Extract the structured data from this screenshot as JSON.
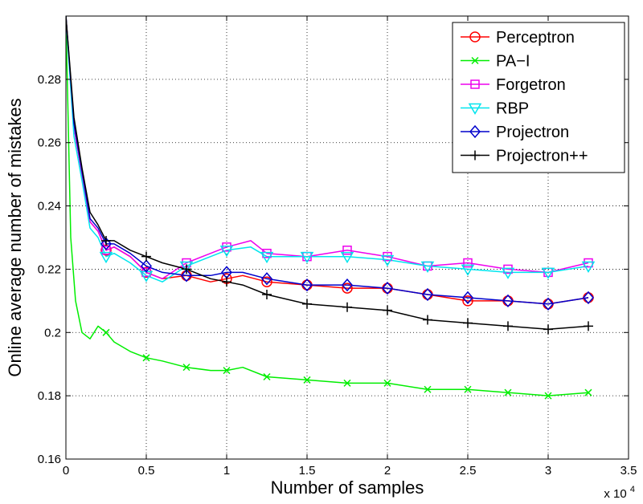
{
  "chart_data": {
    "type": "line",
    "xlabel": "Number of samples",
    "ylabel": "Online average number of mistakes",
    "x_multiplier_label": "x 10",
    "x_multiplier_exponent": "4",
    "xlim": [
      0,
      3.5
    ],
    "ylim": [
      0.16,
      0.3
    ],
    "xticks": [
      0,
      0.5,
      1,
      1.5,
      2,
      2.5,
      3,
      3.5
    ],
    "yticks": [
      0.16,
      0.18,
      0.2,
      0.22,
      0.24,
      0.26,
      0.28
    ],
    "xtick_labels": [
      "0",
      "0.5",
      "1",
      "1.5",
      "2",
      "2.5",
      "3",
      "3.5"
    ],
    "ytick_labels": [
      "0.16",
      "0.18",
      "0.2",
      "0.22",
      "0.24",
      "0.26",
      "0.28"
    ],
    "grid": true,
    "legend_position": "top-right",
    "series": [
      {
        "name": "Perceptron",
        "color": "#ff0000",
        "marker": "circle",
        "x": [
          0.0,
          0.05,
          0.1,
          0.15,
          0.2,
          0.25,
          0.3,
          0.4,
          0.5,
          0.6,
          0.75,
          0.9,
          1.0,
          1.1,
          1.25,
          1.5,
          1.75,
          2.0,
          2.25,
          2.5,
          2.75,
          3.0,
          3.25
        ],
        "y": [
          0.3,
          0.265,
          0.25,
          0.235,
          0.232,
          0.226,
          0.227,
          0.224,
          0.219,
          0.217,
          0.218,
          0.216,
          0.217,
          0.218,
          0.216,
          0.215,
          0.214,
          0.214,
          0.212,
          0.21,
          0.21,
          0.209,
          0.211
        ],
        "marker_x": [
          0.25,
          0.5,
          0.75,
          1.0,
          1.25,
          1.5,
          1.75,
          2.0,
          2.25,
          2.5,
          2.75,
          3.0,
          3.25
        ]
      },
      {
        "name": "PA−I",
        "color": "#00ee00",
        "marker": "x",
        "x": [
          0.0,
          0.03,
          0.06,
          0.1,
          0.15,
          0.2,
          0.25,
          0.3,
          0.4,
          0.5,
          0.6,
          0.75,
          0.9,
          1.0,
          1.1,
          1.25,
          1.5,
          1.75,
          2.0,
          2.25,
          2.5,
          2.75,
          3.0,
          3.25
        ],
        "y": [
          0.3,
          0.23,
          0.21,
          0.2,
          0.198,
          0.202,
          0.2,
          0.197,
          0.194,
          0.192,
          0.191,
          0.189,
          0.188,
          0.188,
          0.189,
          0.186,
          0.185,
          0.184,
          0.184,
          0.182,
          0.182,
          0.181,
          0.18,
          0.181
        ],
        "marker_x": [
          0.25,
          0.5,
          0.75,
          1.0,
          1.25,
          1.5,
          1.75,
          2.0,
          2.25,
          2.5,
          2.75,
          3.0,
          3.25
        ]
      },
      {
        "name": "Forgetron",
        "color": "#ee00ee",
        "marker": "square",
        "x": [
          0.0,
          0.05,
          0.1,
          0.15,
          0.2,
          0.25,
          0.3,
          0.4,
          0.5,
          0.6,
          0.75,
          0.9,
          1.0,
          1.15,
          1.25,
          1.5,
          1.75,
          2.0,
          2.25,
          2.5,
          2.75,
          3.0,
          3.25
        ],
        "y": [
          0.3,
          0.265,
          0.25,
          0.235,
          0.232,
          0.226,
          0.227,
          0.224,
          0.219,
          0.217,
          0.222,
          0.225,
          0.227,
          0.229,
          0.225,
          0.224,
          0.226,
          0.224,
          0.221,
          0.222,
          0.22,
          0.219,
          0.222
        ],
        "marker_x": [
          0.25,
          0.5,
          0.75,
          1.0,
          1.25,
          1.5,
          1.75,
          2.0,
          2.25,
          2.5,
          2.75,
          3.0,
          3.25
        ]
      },
      {
        "name": "RBP",
        "color": "#00e5ee",
        "marker": "triangle-down",
        "x": [
          0.0,
          0.05,
          0.1,
          0.15,
          0.2,
          0.25,
          0.3,
          0.4,
          0.5,
          0.6,
          0.75,
          0.9,
          1.0,
          1.15,
          1.25,
          1.5,
          1.75,
          2.0,
          2.25,
          2.5,
          2.75,
          3.0,
          3.25
        ],
        "y": [
          0.3,
          0.262,
          0.248,
          0.233,
          0.23,
          0.224,
          0.225,
          0.222,
          0.218,
          0.216,
          0.221,
          0.224,
          0.226,
          0.227,
          0.224,
          0.224,
          0.224,
          0.223,
          0.221,
          0.22,
          0.219,
          0.219,
          0.221
        ],
        "marker_x": [
          0.25,
          0.5,
          0.75,
          1.0,
          1.25,
          1.5,
          1.75,
          2.0,
          2.25,
          2.5,
          2.75,
          3.0,
          3.25
        ]
      },
      {
        "name": "Projectron",
        "color": "#0000cc",
        "marker": "diamond",
        "x": [
          0.0,
          0.05,
          0.1,
          0.15,
          0.2,
          0.25,
          0.3,
          0.4,
          0.5,
          0.6,
          0.75,
          0.9,
          1.0,
          1.1,
          1.25,
          1.5,
          1.75,
          2.0,
          2.25,
          2.5,
          2.75,
          3.0,
          3.25
        ],
        "y": [
          0.3,
          0.266,
          0.251,
          0.236,
          0.233,
          0.228,
          0.228,
          0.225,
          0.221,
          0.219,
          0.218,
          0.218,
          0.219,
          0.219,
          0.217,
          0.215,
          0.215,
          0.214,
          0.212,
          0.211,
          0.21,
          0.209,
          0.211
        ],
        "marker_x": [
          0.25,
          0.5,
          0.75,
          1.0,
          1.25,
          1.5,
          1.75,
          2.0,
          2.25,
          2.5,
          2.75,
          3.0,
          3.25
        ]
      },
      {
        "name": "Projectron++",
        "color": "#000000",
        "marker": "plus",
        "x": [
          0.0,
          0.05,
          0.1,
          0.15,
          0.2,
          0.25,
          0.3,
          0.4,
          0.5,
          0.6,
          0.75,
          0.9,
          1.0,
          1.1,
          1.25,
          1.5,
          1.75,
          2.0,
          2.25,
          2.5,
          2.75,
          3.0,
          3.25
        ],
        "y": [
          0.3,
          0.268,
          0.252,
          0.238,
          0.234,
          0.229,
          0.229,
          0.226,
          0.224,
          0.222,
          0.22,
          0.217,
          0.216,
          0.215,
          0.212,
          0.209,
          0.208,
          0.207,
          0.204,
          0.203,
          0.202,
          0.201,
          0.202
        ],
        "marker_x": [
          0.25,
          0.5,
          0.75,
          1.0,
          1.25,
          1.5,
          1.75,
          2.0,
          2.25,
          2.5,
          2.75,
          3.0,
          3.25
        ]
      }
    ]
  }
}
